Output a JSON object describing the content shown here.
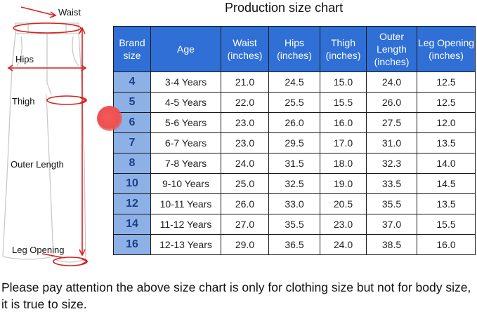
{
  "title": "Production size chart",
  "diagram": {
    "labels": [
      "Waist",
      "Hips",
      "Thigh",
      "Outer Length",
      "Leg Opening"
    ]
  },
  "table": {
    "headers": [
      "Brand size",
      "Age",
      "Waist (inches)",
      "Hips (inches)",
      "Thigh (inches)",
      "Outer Length (inches)",
      "Leg Opening (inches)"
    ],
    "rows": [
      [
        "4",
        "3-4 Years",
        "21.0",
        "24.5",
        "15.0",
        "24.0",
        "12.5"
      ],
      [
        "5",
        "4-5 Years",
        "22.0",
        "25.5",
        "15.5",
        "26.0",
        "12.5"
      ],
      [
        "6",
        "5-6 Years",
        "23.0",
        "26.0",
        "16.0",
        "27.5",
        "12.0"
      ],
      [
        "7",
        "6-7 Years",
        "23.0",
        "29.5",
        "17.0",
        "31.0",
        "13.5"
      ],
      [
        "8",
        "7-8 Years",
        "24.0",
        "31.5",
        "18.0",
        "32.3",
        "14.0"
      ],
      [
        "10",
        "9-10 Years",
        "25.0",
        "32.5",
        "19.0",
        "33.5",
        "14.5"
      ],
      [
        "12",
        "10-11 Years",
        "26.0",
        "33.0",
        "20.5",
        "35.5",
        "13.5"
      ],
      [
        "14",
        "11-12 Years",
        "27.0",
        "35.5",
        "23.0",
        "37.0",
        "15.5"
      ],
      [
        "16",
        "12-13 Years",
        "29.0",
        "36.5",
        "24.0",
        "38.5",
        "16.0"
      ]
    ]
  },
  "note": "Please pay attention the above size chart is only for clothing size but not for body size, it is true to size.",
  "colors": {
    "header_bg": "#2f6fd6",
    "brand_col_bg": "#8db1e6",
    "measure_red": "#d62020",
    "marker_red": "#ee4f4f"
  }
}
